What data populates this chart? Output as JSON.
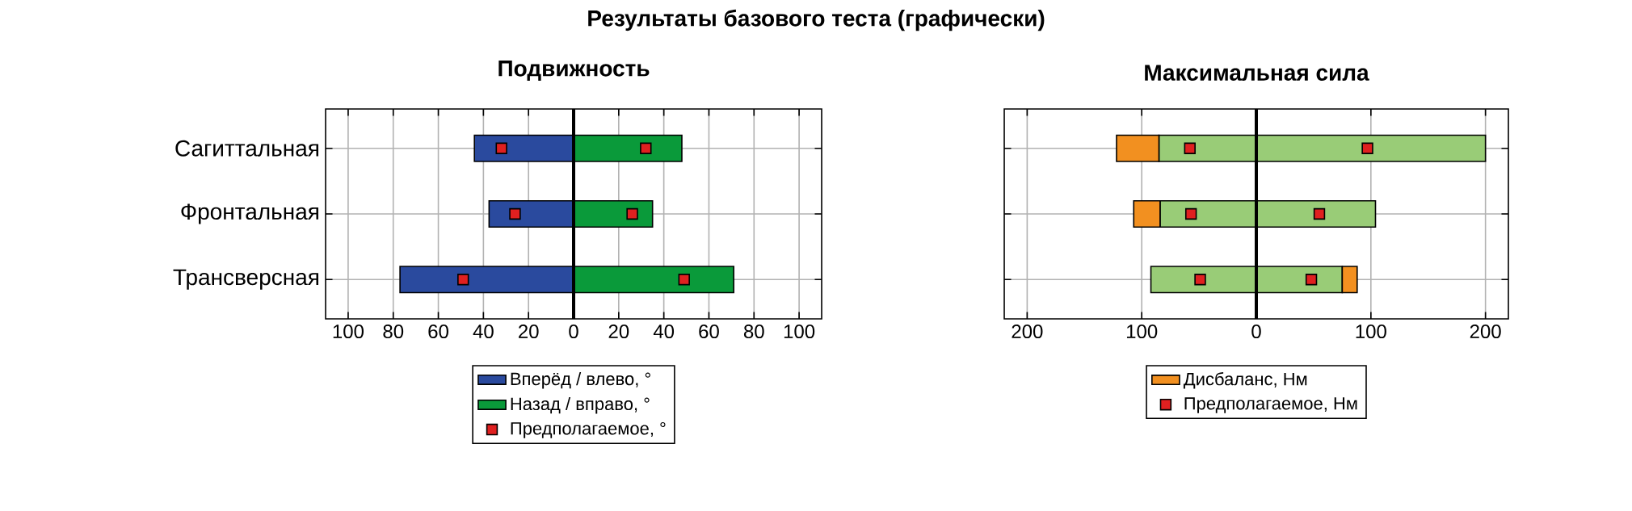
{
  "chart_data": [
    {
      "type": "bar",
      "orientation": "horizontal",
      "title": "Подвижность",
      "stacked": true,
      "annotations": [
        "Результаты базового теста (графически)"
      ],
      "categories": [
        "Сагиттальная",
        "Фронтальная",
        "Трансверсная"
      ],
      "series": [
        {
          "name": "Вперёд / влево, °",
          "color": "#2a4a9e",
          "values": [
            -44,
            -37.5,
            -77
          ]
        },
        {
          "name": "Назад / вправо, °",
          "color": "#0a9a3a",
          "values": [
            48,
            35,
            71
          ]
        },
        {
          "name": "Предполагаемое, °",
          "type": "scatter",
          "color": "#e02020",
          "values": [
            -32,
            -26,
            -49
          ]
        },
        {
          "type": "scatter",
          "color": "#e02020",
          "values": [
            32,
            26,
            49
          ]
        }
      ],
      "xlim": [
        -110,
        110
      ],
      "xticks": [
        {
          "value": -100,
          "label": "100"
        },
        {
          "value": -80,
          "label": "80"
        },
        {
          "value": -60,
          "label": "60"
        },
        {
          "value": -40,
          "label": "40"
        },
        {
          "value": -20,
          "label": "20"
        },
        0,
        20,
        40,
        60,
        80,
        100
      ],
      "ref_lines": [
        {
          "axis": "x",
          "value": 0,
          "color": "#000000"
        }
      ],
      "grid": true,
      "legend": "bottom",
      "marker": "square"
    },
    {
      "type": "bar",
      "orientation": "horizontal",
      "title": "Максимальная сила",
      "stacked": true,
      "categories": [
        null,
        null,
        null
      ],
      "series": [
        {
          "color": "#99cc77",
          "values": [
            -85,
            -84,
            -92
          ]
        },
        {
          "name": "Дисбаланс, Нм",
          "color": "#f29020",
          "values": [
            -37,
            -23,
            null
          ]
        },
        {
          "color": "#99cc77",
          "values": [
            200,
            104,
            75
          ]
        },
        {
          "color": "#f29020",
          "values": [
            null,
            null,
            13
          ]
        },
        {
          "name": "Предполагаемое, Нм",
          "type": "scatter",
          "color": "#e02020",
          "values": [
            -58,
            -57,
            -49
          ]
        },
        {
          "type": "scatter",
          "color": "#e02020",
          "values": [
            97,
            55,
            48
          ]
        }
      ],
      "xlim": [
        -220,
        220
      ],
      "xticks": [
        {
          "value": -200,
          "label": "200"
        },
        {
          "value": -100,
          "label": "100"
        },
        0,
        100,
        200
      ],
      "ref_lines": [
        {
          "axis": "x",
          "value": 0,
          "color": "#000000"
        }
      ],
      "grid": true,
      "legend": "bottom",
      "marker": "square"
    }
  ]
}
